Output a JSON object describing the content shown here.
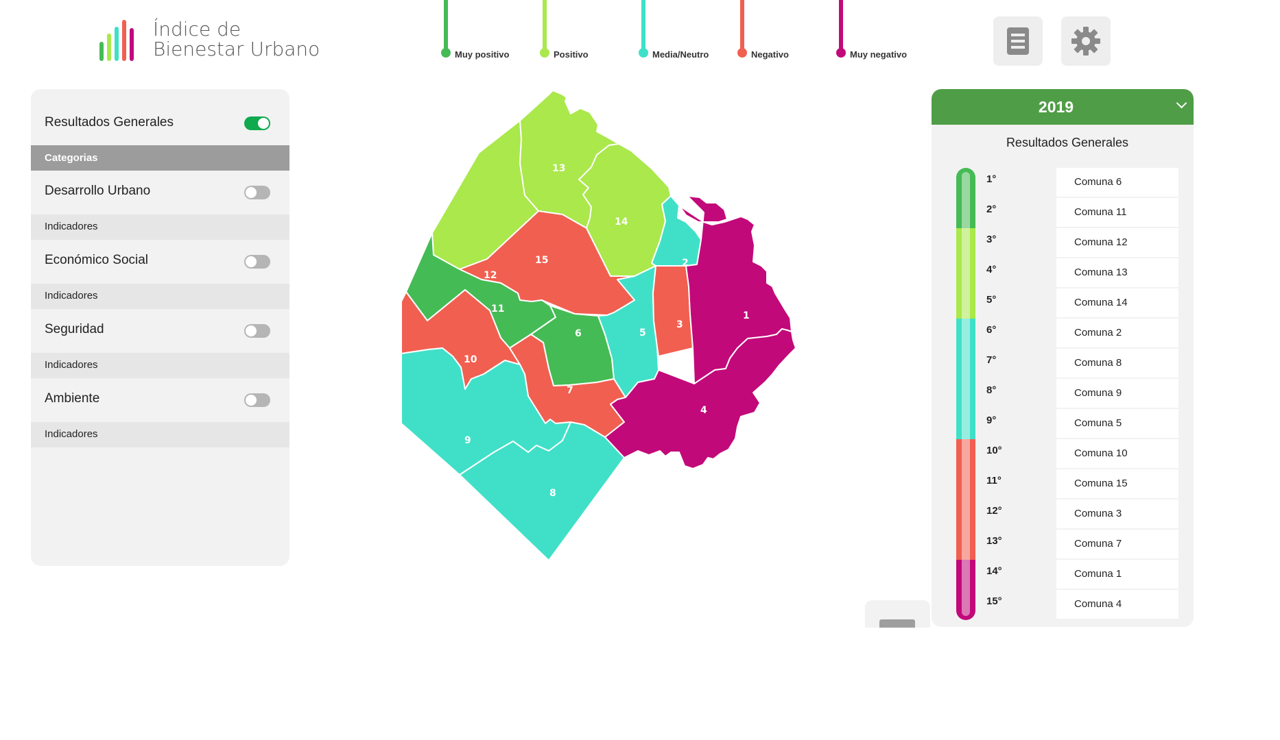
{
  "logo": {
    "line1": "Índice de",
    "line2": "Bienestar Urbano"
  },
  "legend": [
    {
      "label": "Muy positivo",
      "color": "#45bb55"
    },
    {
      "label": "Positivo",
      "color": "#aae84b"
    },
    {
      "label": "Media/Neutro",
      "color": "#40e0c8"
    },
    {
      "label": "Negativo",
      "color": "#f15f50"
    },
    {
      "label": "Muy negativo",
      "color": "#c2097a"
    }
  ],
  "top_buttons": {
    "list": "document-list-icon",
    "settings": "gear-icon"
  },
  "left_panel": {
    "general": {
      "label": "Resultados Generales",
      "on": true
    },
    "categories_header": "Categorias",
    "categories": [
      {
        "label": "Desarrollo Urbano",
        "sub": "Indicadores"
      },
      {
        "label": "Económico Social",
        "sub": "Indicadores"
      },
      {
        "label": "Seguridad",
        "sub": "Indicadores"
      },
      {
        "label": "Ambiente",
        "sub": "Indicadores"
      }
    ]
  },
  "map": {
    "comunas": [
      {
        "id": "1",
        "color": "#c2097a"
      },
      {
        "id": "2",
        "color": "#40e0c8"
      },
      {
        "id": "3",
        "color": "#f15f50"
      },
      {
        "id": "4",
        "color": "#c2097a"
      },
      {
        "id": "5",
        "color": "#40e0c8"
      },
      {
        "id": "6",
        "color": "#45bb55"
      },
      {
        "id": "7",
        "color": "#f15f50"
      },
      {
        "id": "8",
        "color": "#40e0c8"
      },
      {
        "id": "9",
        "color": "#40e0c8"
      },
      {
        "id": "10",
        "color": "#f15f50"
      },
      {
        "id": "11",
        "color": "#45bb55"
      },
      {
        "id": "12",
        "color": "#aae84b"
      },
      {
        "id": "13",
        "color": "#aae84b"
      },
      {
        "id": "14",
        "color": "#aae84b"
      },
      {
        "id": "15",
        "color": "#f15f50"
      }
    ]
  },
  "right_panel": {
    "year": "2019",
    "title": "Resultados Generales",
    "ranking": [
      {
        "pos": "1°",
        "name": "Comuna 6",
        "color": "#45bb55"
      },
      {
        "pos": "2°",
        "name": "Comuna 11",
        "color": "#45bb55"
      },
      {
        "pos": "3°",
        "name": "Comuna 12",
        "color": "#aae84b"
      },
      {
        "pos": "4°",
        "name": "Comuna 13",
        "color": "#aae84b"
      },
      {
        "pos": "5°",
        "name": "Comuna 14",
        "color": "#aae84b"
      },
      {
        "pos": "6°",
        "name": "Comuna 2",
        "color": "#40e0c8"
      },
      {
        "pos": "7°",
        "name": "Comuna 8",
        "color": "#40e0c8"
      },
      {
        "pos": "8°",
        "name": "Comuna 9",
        "color": "#40e0c8"
      },
      {
        "pos": "9°",
        "name": "Comuna 5",
        "color": "#40e0c8"
      },
      {
        "pos": "10°",
        "name": "Comuna 10",
        "color": "#f15f50"
      },
      {
        "pos": "11°",
        "name": "Comuna 15",
        "color": "#f15f50"
      },
      {
        "pos": "12°",
        "name": "Comuna 3",
        "color": "#f15f50"
      },
      {
        "pos": "13°",
        "name": "Comuna 7",
        "color": "#f15f50"
      },
      {
        "pos": "14°",
        "name": "Comuna 1",
        "color": "#c2097a"
      },
      {
        "pos": "15°",
        "name": "Comuna 4",
        "color": "#c2097a"
      }
    ]
  }
}
